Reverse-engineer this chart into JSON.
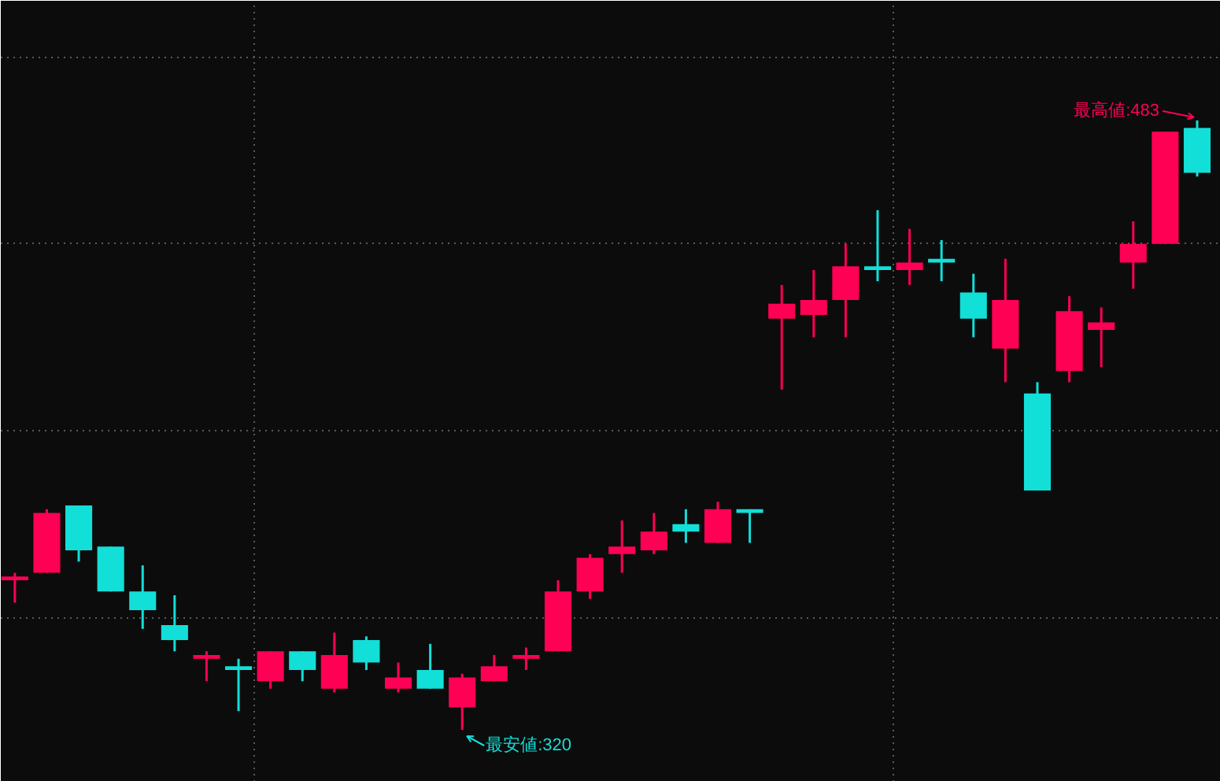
{
  "chart_data": {
    "type": "candlestick",
    "categories": [
      null,
      null,
      null,
      null,
      null,
      null,
      null,
      null,
      null,
      null,
      null,
      null,
      null,
      null,
      null,
      null,
      null,
      null,
      null,
      null,
      null,
      null,
      null,
      null,
      null,
      null,
      null,
      null,
      null,
      null,
      null,
      null,
      null,
      null,
      null,
      null,
      null,
      null
    ],
    "ohlc": [
      [
        360,
        362,
        354,
        361
      ],
      [
        362,
        379,
        362,
        378
      ],
      [
        380,
        380,
        365,
        368
      ],
      [
        369,
        369,
        357,
        357
      ],
      [
        357,
        364,
        347,
        352
      ],
      [
        348,
        356,
        341,
        344
      ],
      [
        339,
        341,
        333,
        340
      ],
      [
        337,
        339,
        325,
        336
      ],
      [
        333,
        341,
        331,
        341
      ],
      [
        341,
        341,
        333,
        336
      ],
      [
        331,
        346,
        330,
        340
      ],
      [
        344,
        345,
        336,
        338
      ],
      [
        331,
        338,
        330,
        334
      ],
      [
        336,
        343,
        331,
        331
      ],
      [
        326,
        335,
        320,
        334
      ],
      [
        333,
        340,
        333,
        337
      ],
      [
        339,
        342,
        336,
        340
      ],
      [
        341,
        360,
        341,
        357
      ],
      [
        357,
        367,
        355,
        366
      ],
      [
        367,
        376,
        362,
        369
      ],
      [
        368,
        378,
        367,
        373
      ],
      [
        375,
        379,
        370,
        373
      ],
      [
        370,
        381,
        370,
        379
      ],
      [
        379,
        379,
        370,
        378
      ],
      [
        430,
        439,
        411,
        434
      ],
      [
        431,
        443,
        425,
        435
      ],
      [
        435,
        450,
        425,
        444
      ],
      [
        444,
        459,
        440,
        443
      ],
      [
        443,
        454,
        439,
        445
      ],
      [
        446,
        451,
        440,
        445
      ],
      [
        437,
        442,
        425,
        430
      ],
      [
        422,
        446,
        413,
        435
      ],
      [
        410,
        413,
        384,
        384
      ],
      [
        416,
        436,
        413,
        432
      ],
      [
        427,
        433,
        417,
        429
      ],
      [
        445,
        456,
        438,
        450
      ],
      [
        450,
        480,
        450,
        480
      ],
      [
        481,
        483,
        468,
        469
      ]
    ],
    "colors": [
      "#ff0055",
      "#ff0055",
      "#12dfd8",
      "#12dfd8",
      "#12dfd8",
      "#12dfd8",
      "#ff0055",
      "#12dfd8",
      "#ff0055",
      "#12dfd8",
      "#ff0055",
      "#12dfd8",
      "#ff0055",
      "#12dfd8",
      "#ff0055",
      "#ff0055",
      "#ff0055",
      "#ff0055",
      "#ff0055",
      "#ff0055",
      "#ff0055",
      "#12dfd8",
      "#ff0055",
      "#12dfd8",
      "#ff0055",
      "#ff0055",
      "#ff0055",
      "#12dfd8",
      "#ff0055",
      "#12dfd8",
      "#12dfd8",
      "#ff0055",
      "#12dfd8",
      "#ff0055",
      "#ff0055",
      "#ff0055",
      "#ff0055",
      "#12dfd8"
    ],
    "annotations": [
      "最高値:483",
      "最安値:320"
    ],
    "grid": true
  }
}
